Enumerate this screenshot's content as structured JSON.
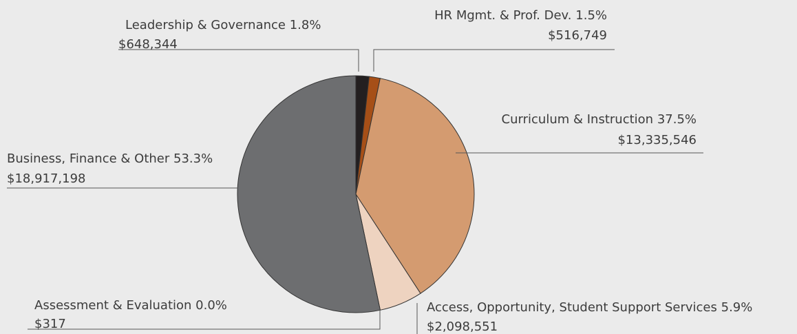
{
  "chart_data": {
    "type": "pie",
    "categories": [
      "Leadership & Governance",
      "HR Mgmt. & Prof. Dev.",
      "Curriculum & Instruction",
      "Access, Opportunity, Student Support Services",
      "Assessment & Evaluation",
      "Business, Finance & Other"
    ],
    "values": [
      1.8,
      1.5,
      37.5,
      5.9,
      0.0,
      53.3
    ],
    "value_labels": [
      "1.8%",
      "1.5%",
      "37.5%",
      "5.9%",
      "0.0%",
      "53.3%"
    ],
    "amounts": [
      648344,
      516749,
      13335546,
      2098551,
      317,
      18917198
    ],
    "amount_labels": [
      "$648,344",
      "$516,749",
      "$13,335,546",
      "$2,098,551",
      "$317",
      "$18,917,198"
    ],
    "colors": [
      "#231f20",
      "#a64f17",
      "#d49b70",
      "#eed3c0",
      "#9a9b9d",
      "#6d6e70"
    ]
  }
}
